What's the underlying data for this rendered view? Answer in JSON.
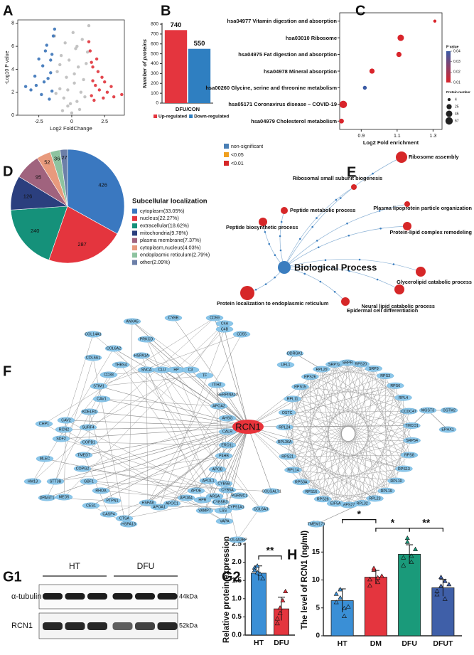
{
  "panel_labels": [
    "A",
    "B",
    "C",
    "D",
    "E",
    "F",
    "G1",
    "G2",
    "H"
  ],
  "chart_data": [
    {
      "type": "scatter",
      "xlabel": "Log2 FoldChange",
      "ylabel": "-Log10 P value",
      "xlim": [
        -4.1,
        4.0
      ],
      "ylim": [
        0,
        8.3
      ],
      "xticks": [
        -2.5,
        0,
        2.5
      ],
      "yticks": [
        0,
        2,
        4,
        6,
        8
      ],
      "series": [
        {
          "color": "#bdbdbd",
          "x": [
            0,
            -0.3,
            0.4,
            -0.6,
            0.7,
            -0.9,
            0.2,
            -0.4,
            0.9,
            -1.1,
            0.5,
            -0.2,
            1.1,
            -0.8,
            0.3,
            -0.5,
            0.8,
            0.1,
            -1.3,
            1.2,
            -0.1,
            0.6,
            -0.7,
            1.0,
            -1.2,
            0.2,
            -0.3,
            0.4,
            -0.9,
            1.3
          ],
          "y": [
            0.2,
            0.8,
            1.2,
            1.5,
            2,
            2.3,
            2.8,
            3.3,
            3.1,
            3.8,
            4.2,
            4.8,
            4.5,
            5.2,
            5.8,
            6.3,
            6.6,
            7.2,
            6.9,
            5.5,
            1.0,
            0.5,
            0.4,
            1.6,
            1.9,
            3.6,
            2.2,
            6.0,
            4.4,
            7.8
          ]
        },
        {
          "color": "#3a73b8",
          "x": [
            -1.6,
            -2.2,
            -1.8,
            -2.7,
            -1.5,
            -3.1,
            -2.0,
            -1.4,
            -1.9,
            -2.5,
            -1.7,
            -3.5,
            -1.6,
            -2.3,
            -1.3,
            -2.8,
            -1.5,
            -2.1
          ],
          "y": [
            4.8,
            4.3,
            3.2,
            2.6,
            2.1,
            2.2,
            5.6,
            6.9,
            6.1,
            4.9,
            1.4,
            2.5,
            3.7,
            1.8,
            7.5,
            3.4,
            5.3,
            2.9
          ]
        },
        {
          "color": "#e0333b",
          "x": [
            1.6,
            2.3,
            1.8,
            2.7,
            1.5,
            3.2,
            2.0,
            1.4,
            1.9,
            2.5,
            1.7,
            3.8,
            1.6,
            2.4,
            1.3,
            3.0,
            1.5,
            2.1
          ],
          "y": [
            4.2,
            3.3,
            2.6,
            2.0,
            1.7,
            1.6,
            3.8,
            5.6,
            4.9,
            2.9,
            1.3,
            1.8,
            3.0,
            1.5,
            6.4,
            2.5,
            4.6,
            2.2
          ]
        }
      ]
    },
    {
      "type": "bar",
      "ylabel": "Number of proteins",
      "xlabel": "DFU/CON",
      "categories": [
        "Up-regulated",
        "Down-regulated"
      ],
      "values": [
        740,
        550
      ],
      "colors": [
        "#e4353e",
        "#2f7fc1"
      ],
      "ylim": [
        0,
        800
      ],
      "yticks": [
        0,
        100,
        200,
        300,
        400,
        500,
        600,
        700,
        800
      ],
      "data_labels": true,
      "legend": "bottom"
    },
    {
      "type": "bubble",
      "categories": [
        "hsa04977 Vitamin digestion and absorption",
        "hsa03010 Ribosome",
        "hsa04975 Fat digestion and absorption",
        "hsa04978 Mineral absorption",
        "hsa00260 Glycine, serine and threonine metabolism",
        "hsa05171 Coronavirus disease – COVID-19",
        "hsa04979 Cholesterol metabolism"
      ],
      "x": [
        1.31,
        1.12,
        1.11,
        0.96,
        0.92,
        0.8,
        0.79
      ],
      "size": [
        4,
        46,
        25,
        25,
        10,
        67,
        20
      ],
      "pvalue": [
        0.01,
        0.01,
        0.01,
        0.01,
        0.04,
        0.01,
        0.01
      ],
      "xlabel": "Log2 Fold enrichment",
      "xlim": [
        0.78,
        1.35
      ],
      "xticks": [
        0.9,
        1.1,
        1.3
      ],
      "color_legend": {
        "title": "P value",
        "ticks": [
          0.04,
          0.03,
          0.02,
          0.01
        ],
        "colors": [
          "#3b5ba5",
          "#d9242b"
        ]
      },
      "size_legend": {
        "title": "Protein number",
        "values": [
          4,
          25,
          46,
          67
        ]
      }
    },
    {
      "type": "pie",
      "title": "Subcellular localization",
      "categories": [
        "cytoplasm(33.05%)",
        "nucleus(22.27%)",
        "extracellular(18.62%)",
        "mitochondria(9.78%)",
        "plasma membrane(7.37%)",
        "cytoplasm,nucleus(4.03%)",
        "endoplasmic reticulum(2.79%)",
        "other(2.09%)"
      ],
      "values": [
        426,
        287,
        240,
        126,
        95,
        52,
        36,
        27
      ],
      "colors": [
        "#3a78c0",
        "#e4353e",
        "#15917a",
        "#2b3f7e",
        "#a0637e",
        "#e89a7d",
        "#8ec3a0",
        "#6c7fa8"
      ]
    },
    {
      "type": "bar",
      "ylabel": "Relative protein expression",
      "categories": [
        "HT",
        "DFU"
      ],
      "values": [
        1.7,
        0.72
      ],
      "errors": [
        0.2,
        0.32
      ],
      "points": [
        [
          1.85,
          1.72,
          1.68,
          1.55,
          1.78,
          1.9
        ],
        [
          0.45,
          0.6,
          0.95,
          1.2,
          0.32,
          0.75
        ]
      ],
      "colors": [
        "#3a8fd6",
        "#e4353e"
      ],
      "ylim": [
        0,
        2.5
      ],
      "yticks": [
        {
          "value": 0,
          "label": "0.0"
        },
        0.5,
        {
          "value": 1,
          "label": "1.0"
        },
        1.5,
        {
          "value": 2,
          "label": "2.0"
        },
        2.5
      ],
      "annotations": [
        "**"
      ]
    },
    {
      "type": "bar",
      "ylabel": "The level of RCN1  (ng/ml)",
      "categories": [
        "HT",
        "DM",
        "DFU",
        "DFUT"
      ],
      "values": [
        6.3,
        10.5,
        14.6,
        8.6
      ],
      "errors": [
        2.1,
        1.2,
        1.7,
        1.5
      ],
      "points": [
        [
          6.0,
          8.3,
          3.5,
          5.2,
          7.5,
          6.8,
          4.9
        ],
        [
          10.1,
          11.8,
          9.6,
          10.7,
          9.0,
          12.1,
          10.4
        ],
        [
          14.0,
          16.8,
          13.2,
          15.5,
          12.6,
          17.5,
          14.3
        ],
        [
          8.0,
          10.5,
          6.6,
          9.2,
          7.4,
          8.9,
          9.8
        ]
      ],
      "colors": [
        "#3a8fd6",
        "#e4353e",
        "#1a9a7a",
        "#3f5fa8"
      ],
      "ylim": [
        0,
        20
      ],
      "yticks": [
        0,
        5,
        10,
        15,
        20
      ],
      "annotations": [
        "*",
        "*",
        "**"
      ]
    }
  ],
  "go_network": {
    "legend": [
      "non-significant",
      "<0.05",
      "<0.01"
    ],
    "center": "Biological Process",
    "terms": [
      "Ribosome assembly",
      "Ribosomal small subunit biogenesis",
      "Peptide metabolic process",
      "Plasma lipoprotein particle organization",
      "Peptide biosynthetic process",
      "Protein-lipid complex remodeling",
      "Glycerolipid catabolic process",
      "Protein localization to endoplasmic reticulum",
      "Neural lipid catabolic process",
      "Epidermal cell differentiation"
    ]
  },
  "ppi_network": {
    "hub": "RCN1",
    "nodes": [
      "ANXA5",
      "CYBB",
      "PRKCD",
      "COL14A1",
      "COL6A2",
      "COL6A1",
      "HSPA1A",
      "SNCA",
      "CLU",
      "HP",
      "C3",
      "TF",
      "CD59",
      "C4A",
      "C4B",
      "CD55",
      "ITIH2",
      "THBS4",
      "SERPINA10",
      "CD38",
      "STIM1",
      "APOA2",
      "CAV1",
      "AHSG",
      "KDELR1",
      "CALR",
      "CAV2",
      "CHP1",
      "RCN2",
      "SURF4",
      "SDF2",
      "COPB1",
      "ERO1L",
      "P4HB",
      "TMED7",
      "MLEC",
      "COPG2",
      "GBF1",
      "STT3B",
      "HM13",
      "DPAGT1",
      "MED5",
      "RHOA",
      "PTPN1",
      "CES1",
      "CASP4",
      "CTSA",
      "HSPA13",
      "HSPA8",
      "APOA1",
      "APOC1",
      "APOA4",
      "APOE",
      "HPR",
      "APOL1",
      "APOB",
      "VAMP7",
      "ARSA",
      "CYB5B",
      "CYB5A",
      "CYB5R3",
      "PGRMC1",
      "LSS",
      "CYP51A1",
      "VAPA",
      "COL4A3BP",
      "COLGALT1",
      "COL6A3"
    ],
    "ring": [
      "RPL29",
      "SRP72",
      "SRPR",
      "RPS20",
      "SRP9",
      "RPS3",
      "RPS6",
      "RPL4",
      "CCDC47",
      "TMCO1",
      "SRP54",
      "RPS8",
      "RPS13",
      "RPL10",
      "RPL19",
      "RPL23",
      "RPL32",
      "RPS27",
      "EIF5A",
      "RPS28",
      "RPS16",
      "RPS3A",
      "RPL14",
      "RPS21",
      "RPL36A",
      "RPL24",
      "OSTC",
      "RPL11",
      "RPS15",
      "RPS26"
    ],
    "outer": [
      "DDRGK1",
      "UFL1",
      "MGST3",
      "GSTM2",
      "EPHX1",
      "TMEM173"
    ]
  },
  "blot": {
    "groups": [
      "HT",
      "DFU"
    ],
    "rows": [
      "α-tubulin",
      "RCN1"
    ],
    "sizes": [
      "44kDa",
      "52kDa"
    ]
  }
}
